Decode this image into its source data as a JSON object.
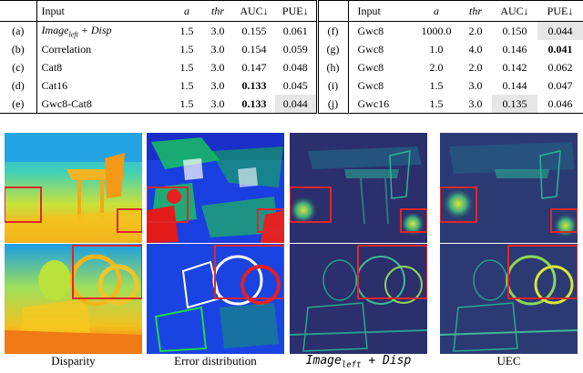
{
  "table": {
    "headers_left": [
      "Input",
      "a",
      "thr",
      "AUC↓",
      "PUE↓"
    ],
    "headers_right": [
      "Input",
      "a",
      "thr",
      "AUC↓",
      "PUE↓"
    ],
    "rows": [
      {
        "left": {
          "id": "(a)",
          "input": "Image",
          "input_sub": "left",
          "input_suffix": "+ Disp",
          "a": "1.5",
          "thr": "3.0",
          "auc": "0.155",
          "pue": "0.061"
        },
        "right": {
          "id": "(f)",
          "input": "Gwc8",
          "a": "1000.0",
          "thr": "2.0",
          "auc": "0.150",
          "pue": "0.044"
        }
      },
      {
        "left": {
          "id": "(b)",
          "input": "Correlation",
          "a": "1.5",
          "thr": "3.0",
          "auc": "0.154",
          "pue": "0.059"
        },
        "right": {
          "id": "(g)",
          "input": "Gwc8",
          "a": "1.0",
          "thr": "4.0",
          "auc": "0.146",
          "pue": "0.041"
        }
      },
      {
        "left": {
          "id": "(c)",
          "input": "Cat8",
          "a": "1.5",
          "thr": "3.0",
          "auc": "0.147",
          "pue": "0.048"
        },
        "right": {
          "id": "(h)",
          "input": "Gwc8",
          "a": "2.0",
          "thr": "2.0",
          "auc": "0.142",
          "pue": "0.062"
        }
      },
      {
        "left": {
          "id": "(d)",
          "input": "Cat16",
          "a": "1.5",
          "thr": "3.0",
          "auc": "0.133",
          "pue": "0.045"
        },
        "right": {
          "id": "(i)",
          "input": "Gwc8",
          "a": "1.5",
          "thr": "3.0",
          "auc": "0.144",
          "pue": "0.047"
        }
      },
      {
        "left": {
          "id": "(e)",
          "input": "Gwc8-Cat8",
          "a": "1.5",
          "thr": "3.0",
          "auc": "0.133",
          "pue": "0.044"
        },
        "right": {
          "id": "(j)",
          "input": "Gwc16",
          "a": "1.5",
          "thr": "3.0",
          "auc": "0.135",
          "pue": "0.046"
        }
      }
    ]
  },
  "figure": {
    "captions": {
      "disparity": "Disparity",
      "error": "Error distribution",
      "image_main": "Image",
      "image_sub": "left",
      "image_suffix": " + Disp",
      "uec": "UEC"
    },
    "colors": {
      "highlight_box": "#e0262a",
      "shade_cell": "#e6e6e6"
    }
  }
}
